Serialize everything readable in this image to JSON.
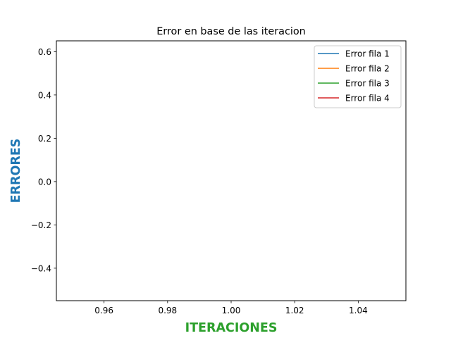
{
  "chart_data": {
    "type": "line",
    "title": "Error en base de las iteracion",
    "xlabel": "ITERACIONES",
    "ylabel": "ERRORES",
    "xlabel_color": "#2ca02c",
    "ylabel_color": "#1f77b4",
    "xlim": [
      0.945,
      1.055
    ],
    "ylim": [
      -0.55,
      0.65
    ],
    "xticks": [
      0.96,
      0.98,
      1.0,
      1.02,
      1.04
    ],
    "xtick_labels": [
      "0.96",
      "0.98",
      "1.00",
      "1.02",
      "1.04"
    ],
    "yticks": [
      -0.4,
      -0.2,
      0.0,
      0.2,
      0.4,
      0.6
    ],
    "ytick_labels": [
      "−0.4",
      "−0.2",
      "0.0",
      "0.2",
      "0.4",
      "0.6"
    ],
    "grid": false,
    "legend_position": "top-right",
    "series": [
      {
        "name": "Error fila 1",
        "color": "#1f77b4",
        "x": [],
        "y": []
      },
      {
        "name": "Error fila 2",
        "color": "#ff7f0e",
        "x": [],
        "y": []
      },
      {
        "name": "Error fila 3",
        "color": "#2ca02c",
        "x": [],
        "y": []
      },
      {
        "name": "Error fila 4",
        "color": "#d62728",
        "x": [],
        "y": []
      }
    ]
  }
}
